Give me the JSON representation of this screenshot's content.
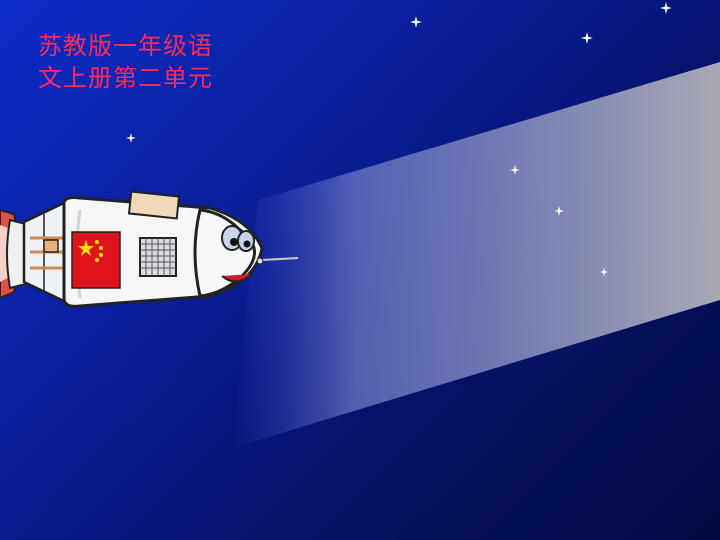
{
  "slide": {
    "title_line1": "苏教版一年级语",
    "title_line2": "文上册第二单元"
  },
  "colors": {
    "background_top": "#0d2cc8",
    "background_bottom": "#030a40",
    "title": "#ff2a5a",
    "beam": "#a9a9b5"
  },
  "icons": [
    "rocket-illustration",
    "china-flag-icon",
    "star-icon",
    "light-beam"
  ]
}
